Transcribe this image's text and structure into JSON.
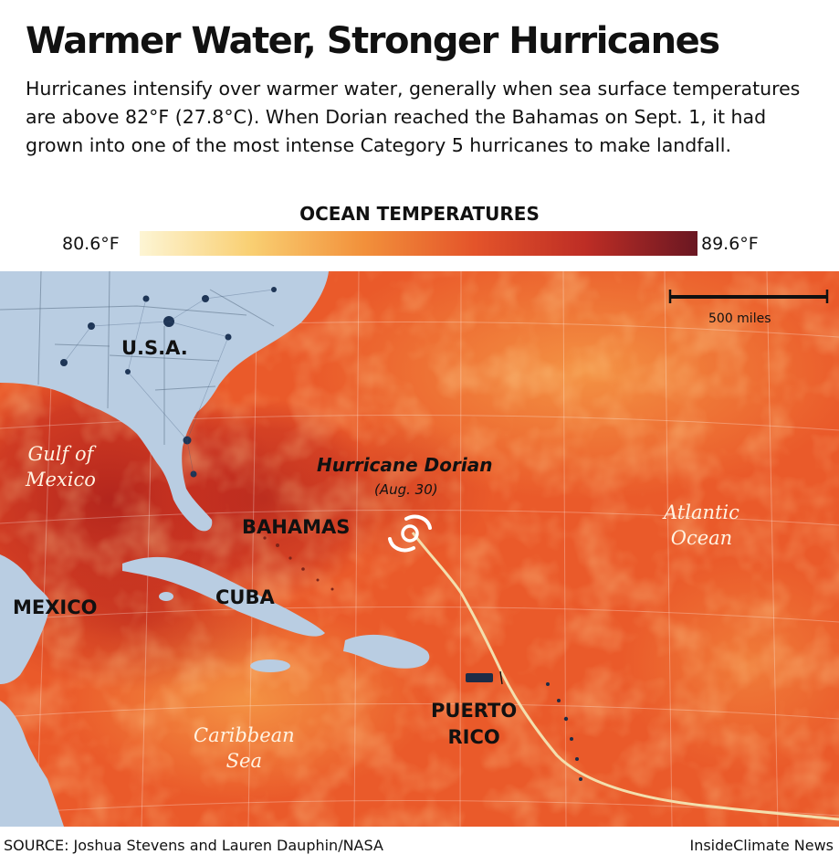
{
  "header": {
    "title": "Warmer Water, Stronger Hurricanes",
    "subtitle": "Hurricanes intensify over warmer water, generally when sea surface temperatures are above 82°F (27.8°C). When Dorian reached the Bahamas on Sept. 1, it had grown into one of the most intense Category 5 hurricanes to make landfall."
  },
  "legend": {
    "title": "OCEAN TEMPERATURES",
    "min_label": "80.6°F",
    "max_label": "89.6°F",
    "colors": [
      "#fdf5d4",
      "#f9cf72",
      "#f2913b",
      "#e4542a",
      "#bd2d25",
      "#6a1722"
    ]
  },
  "map": {
    "scale_label": "500 miles",
    "labels": {
      "usa": "U.S.A.",
      "mexico": "MEXICO",
      "bahamas": "BAHAMAS",
      "cuba": "CUBA",
      "puerto_rico_1": "PUERTO",
      "puerto_rico_2": "RICO",
      "gulf_1": "Gulf of",
      "gulf_2": "Mexico",
      "atlantic_1": "Atlantic",
      "atlantic_2": "Ocean",
      "caribbean_1": "Caribbean",
      "caribbean_2": "Sea",
      "hurricane_name": "Hurricane Dorian",
      "hurricane_date": "(Aug. 30)"
    },
    "colors": {
      "ocean": "#ea5a2a",
      "ocean_warm": "#c42e20",
      "ocean_cool": "#f49440",
      "land": "#b9cde2",
      "track": "#f3dfae"
    },
    "icons": [
      "hurricane-icon"
    ]
  },
  "footer": {
    "source": "SOURCE: Joshua Stevens and Lauren Dauphin/NASA",
    "credit": "InsideClimate News"
  }
}
